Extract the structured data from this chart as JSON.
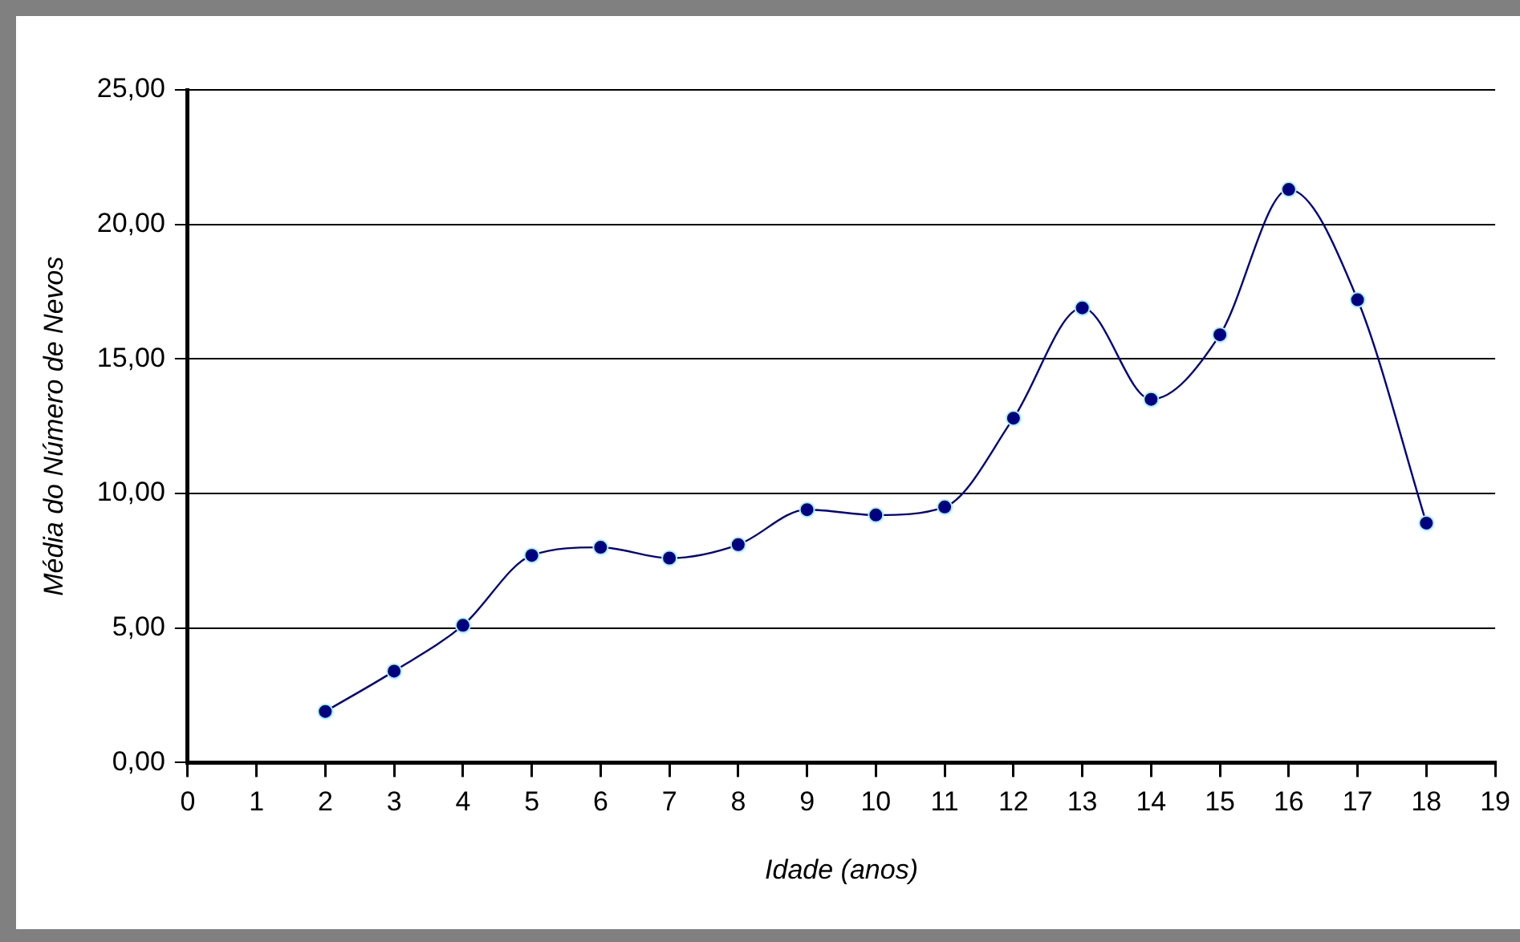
{
  "chart_data": {
    "type": "line",
    "xlabel": "Idade (anos)",
    "ylabel": "Média do Número de Nevos",
    "x": [
      2,
      3,
      4,
      5,
      6,
      7,
      8,
      9,
      10,
      11,
      12,
      13,
      14,
      15,
      16,
      17,
      18
    ],
    "series": [
      {
        "color": "#000080",
        "values": [
          1.9,
          3.4,
          5.1,
          7.7,
          8.0,
          7.6,
          8.1,
          9.4,
          9.2,
          9.5,
          12.8,
          16.9,
          13.5,
          15.9,
          21.3,
          17.2,
          8.9
        ]
      }
    ],
    "xlim": [
      0,
      19
    ],
    "xticks": [
      0,
      1,
      2,
      3,
      4,
      5,
      6,
      7,
      8,
      9,
      10,
      11,
      12,
      13,
      14,
      15,
      16,
      17,
      18,
      19
    ],
    "ylim": [
      0,
      25
    ],
    "yticks": [
      {
        "value": 0,
        "label": "0,00"
      },
      {
        "value": 5,
        "label": "5,00"
      },
      {
        "value": 10,
        "label": "10,00"
      },
      {
        "value": 15,
        "label": "15,00"
      },
      {
        "value": 20,
        "label": "20,00"
      },
      {
        "value": 25,
        "label": "25,00"
      }
    ],
    "grid": "y",
    "legend": false,
    "marker": "circle",
    "line_style": "solid"
  }
}
